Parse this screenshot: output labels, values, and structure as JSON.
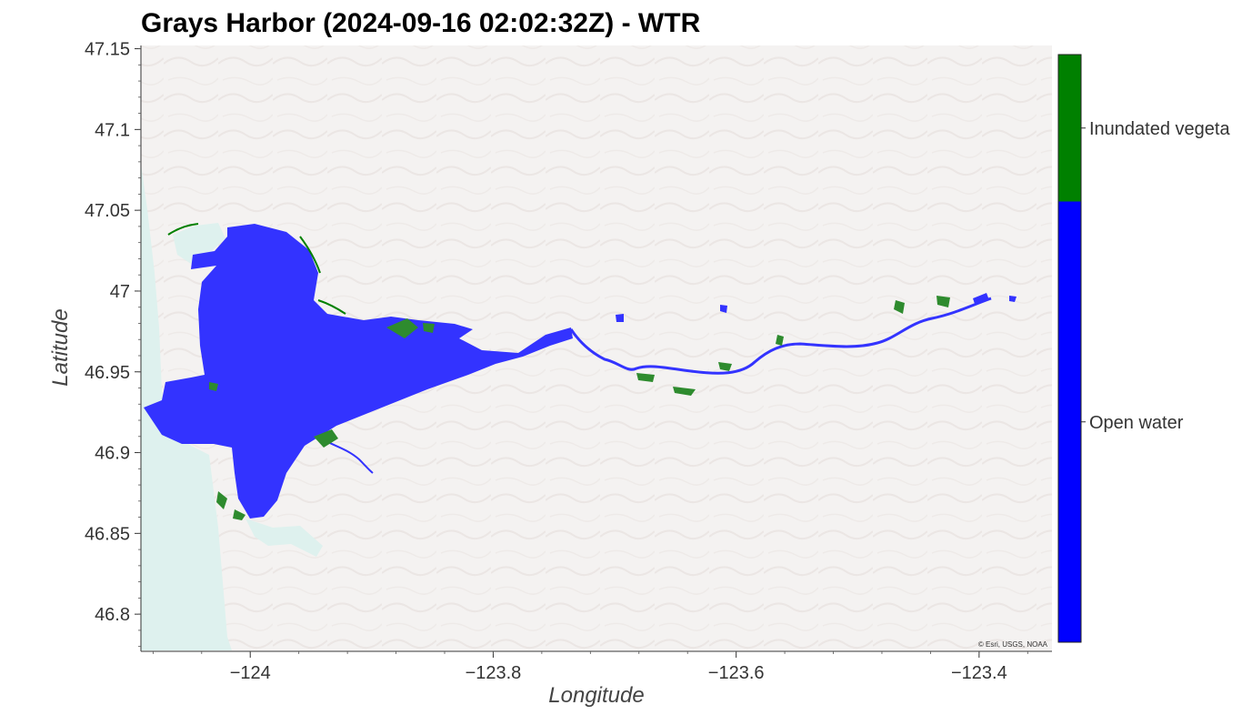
{
  "title": "Grays Harbor (2024-09-16 02:02:32Z) - WTR",
  "attribution": "© Esri, USGS, NOAA",
  "colors": {
    "open_water": "#0000ff",
    "inundated_vegetation": "#008000",
    "water_overlay": "#3333ff",
    "ocean": "#def1ee",
    "terrain": "#f4f2f1"
  },
  "chart_data": {
    "type": "map",
    "xlabel": "Longitude",
    "ylabel": "Latitude",
    "xlim": [
      -124.09,
      -123.34
    ],
    "ylim": [
      46.777,
      47.152
    ],
    "x_ticks": [
      {
        "value": -124.0,
        "label": "−124"
      },
      {
        "value": -123.8,
        "label": "−123.8"
      },
      {
        "value": -123.6,
        "label": "−123.6"
      },
      {
        "value": -123.4,
        "label": "−123.4"
      }
    ],
    "y_ticks": [
      {
        "value": 47.15,
        "label": "47.15"
      },
      {
        "value": 47.1,
        "label": "47.1"
      },
      {
        "value": 47.05,
        "label": "47.05"
      },
      {
        "value": 47.0,
        "label": "47"
      },
      {
        "value": 46.95,
        "label": "46.95"
      },
      {
        "value": 46.9,
        "label": "46.9"
      },
      {
        "value": 46.85,
        "label": "46.85"
      },
      {
        "value": 46.8,
        "label": "46.8"
      }
    ],
    "legend": [
      {
        "label": "Inundated vegeta",
        "color": "#008000",
        "fraction": 0.25
      },
      {
        "label": "Open water",
        "color": "#0000ff",
        "fraction": 0.75
      }
    ]
  }
}
